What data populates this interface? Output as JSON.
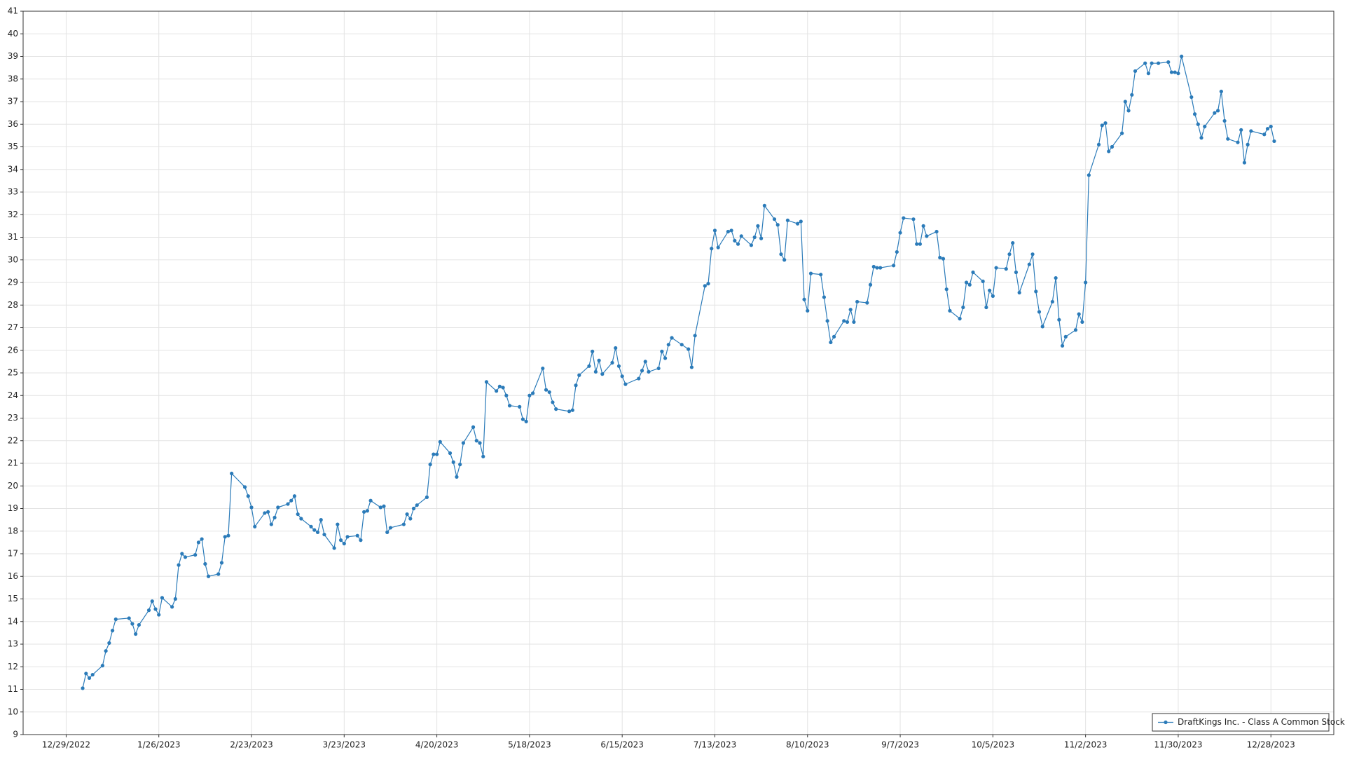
{
  "chart_data": {
    "type": "line",
    "x": [
      "1/3/2023",
      "1/4/2023",
      "1/5/2023",
      "1/6/2023",
      "1/9/2023",
      "1/10/2023",
      "1/11/2023",
      "1/12/2023",
      "1/13/2023",
      "1/17/2023",
      "1/18/2023",
      "1/19/2023",
      "1/20/2023",
      "1/23/2023",
      "1/24/2023",
      "1/25/2023",
      "1/26/2023",
      "1/27/2023",
      "1/30/2023",
      "1/31/2023",
      "2/1/2023",
      "2/2/2023",
      "2/3/2023",
      "2/6/2023",
      "2/7/2023",
      "2/8/2023",
      "2/9/2023",
      "2/10/2023",
      "2/13/2023",
      "2/14/2023",
      "2/15/2023",
      "2/16/2023",
      "2/17/2023",
      "2/21/2023",
      "2/22/2023",
      "2/23/2023",
      "2/24/2023",
      "2/27/2023",
      "2/28/2023",
      "3/1/2023",
      "3/2/2023",
      "3/3/2023",
      "3/6/2023",
      "3/7/2023",
      "3/8/2023",
      "3/9/2023",
      "3/10/2023",
      "3/13/2023",
      "3/14/2023",
      "3/15/2023",
      "3/16/2023",
      "3/17/2023",
      "3/20/2023",
      "3/21/2023",
      "3/22/2023",
      "3/23/2023",
      "3/24/2023",
      "3/27/2023",
      "3/28/2023",
      "3/29/2023",
      "3/30/2023",
      "3/31/2023",
      "4/3/2023",
      "4/4/2023",
      "4/5/2023",
      "4/6/2023",
      "4/10/2023",
      "4/11/2023",
      "4/12/2023",
      "4/13/2023",
      "4/14/2023",
      "4/17/2023",
      "4/18/2023",
      "4/19/2023",
      "4/20/2023",
      "4/21/2023",
      "4/24/2023",
      "4/25/2023",
      "4/26/2023",
      "4/27/2023",
      "4/28/2023",
      "5/1/2023",
      "5/2/2023",
      "5/3/2023",
      "5/4/2023",
      "5/5/2023",
      "5/8/2023",
      "5/9/2023",
      "5/10/2023",
      "5/11/2023",
      "5/12/2023",
      "5/15/2023",
      "5/16/2023",
      "5/17/2023",
      "5/18/2023",
      "5/19/2023",
      "5/22/2023",
      "5/23/2023",
      "5/24/2023",
      "5/25/2023",
      "5/26/2023",
      "5/30/2023",
      "5/31/2023",
      "6/1/2023",
      "6/2/2023",
      "6/5/2023",
      "6/6/2023",
      "6/7/2023",
      "6/8/2023",
      "6/9/2023",
      "6/12/2023",
      "6/13/2023",
      "6/14/2023",
      "6/15/2023",
      "6/16/2023",
      "6/20/2023",
      "6/21/2023",
      "6/22/2023",
      "6/23/2023",
      "6/26/2023",
      "6/27/2023",
      "6/28/2023",
      "6/29/2023",
      "6/30/2023",
      "7/3/2023",
      "7/5/2023",
      "7/6/2023",
      "7/7/2023",
      "7/10/2023",
      "7/11/2023",
      "7/12/2023",
      "7/13/2023",
      "7/14/2023",
      "7/17/2023",
      "7/18/2023",
      "7/19/2023",
      "7/20/2023",
      "7/21/2023",
      "7/24/2023",
      "7/25/2023",
      "7/26/2023",
      "7/27/2023",
      "7/28/2023",
      "7/31/2023",
      "8/1/2023",
      "8/2/2023",
      "8/3/2023",
      "8/4/2023",
      "8/7/2023",
      "8/8/2023",
      "8/9/2023",
      "8/10/2023",
      "8/11/2023",
      "8/14/2023",
      "8/15/2023",
      "8/16/2023",
      "8/17/2023",
      "8/18/2023",
      "8/21/2023",
      "8/22/2023",
      "8/23/2023",
      "8/24/2023",
      "8/25/2023",
      "8/28/2023",
      "8/29/2023",
      "8/30/2023",
      "8/31/2023",
      "9/1/2023",
      "9/5/2023",
      "9/6/2023",
      "9/7/2023",
      "9/8/2023",
      "9/11/2023",
      "9/12/2023",
      "9/13/2023",
      "9/14/2023",
      "9/15/2023",
      "9/18/2023",
      "9/19/2023",
      "9/20/2023",
      "9/21/2023",
      "9/22/2023",
      "9/25/2023",
      "9/26/2023",
      "9/27/2023",
      "9/28/2023",
      "9/29/2023",
      "10/2/2023",
      "10/3/2023",
      "10/4/2023",
      "10/5/2023",
      "10/6/2023",
      "10/9/2023",
      "10/10/2023",
      "10/11/2023",
      "10/12/2023",
      "10/13/2023",
      "10/16/2023",
      "10/17/2023",
      "10/18/2023",
      "10/19/2023",
      "10/20/2023",
      "10/23/2023",
      "10/24/2023",
      "10/25/2023",
      "10/26/2023",
      "10/27/2023",
      "10/30/2023",
      "10/31/2023",
      "11/1/2023",
      "11/2/2023",
      "11/3/2023",
      "11/6/2023",
      "11/7/2023",
      "11/8/2023",
      "11/9/2023",
      "11/10/2023",
      "11/13/2023",
      "11/14/2023",
      "11/15/2023",
      "11/16/2023",
      "11/17/2023",
      "11/20/2023",
      "11/21/2023",
      "11/22/2023",
      "11/24/2023",
      "11/27/2023",
      "11/28/2023",
      "11/29/2023",
      "11/30/2023",
      "12/1/2023",
      "12/4/2023",
      "12/5/2023",
      "12/6/2023",
      "12/7/2023",
      "12/8/2023",
      "12/11/2023",
      "12/12/2023",
      "12/13/2023",
      "12/14/2023",
      "12/15/2023",
      "12/18/2023",
      "12/19/2023",
      "12/20/2023",
      "12/21/2023",
      "12/22/2023",
      "12/26/2023",
      "12/27/2023",
      "12/28/2023",
      "12/29/2023"
    ],
    "series": [
      {
        "name": "DraftKings Inc. - Class A Common Stock",
        "color": "#2b7bb9",
        "values": [
          11.05,
          11.7,
          11.5,
          11.65,
          12.05,
          12.7,
          13.05,
          13.6,
          14.1,
          14.15,
          13.9,
          13.45,
          13.85,
          14.5,
          14.9,
          14.55,
          14.3,
          15.05,
          14.65,
          15.0,
          16.5,
          17.0,
          16.85,
          16.95,
          17.5,
          17.65,
          16.55,
          16.0,
          16.1,
          16.6,
          17.75,
          17.8,
          20.55,
          19.95,
          19.55,
          19.05,
          18.2,
          18.8,
          18.85,
          18.3,
          18.6,
          19.05,
          19.2,
          19.35,
          19.55,
          18.75,
          18.55,
          18.2,
          18.05,
          17.95,
          18.5,
          17.85,
          17.25,
          18.3,
          17.6,
          17.45,
          17.75,
          17.8,
          17.6,
          18.85,
          18.9,
          19.35,
          19.05,
          19.1,
          17.95,
          18.15,
          18.3,
          18.75,
          18.55,
          19.0,
          19.15,
          19.5,
          20.95,
          21.4,
          21.4,
          21.95,
          21.45,
          21.05,
          20.4,
          20.95,
          21.9,
          22.6,
          22.0,
          21.9,
          21.3,
          24.6,
          24.2,
          24.4,
          24.35,
          24.0,
          23.55,
          23.5,
          22.95,
          22.85,
          24.0,
          24.1,
          25.2,
          24.25,
          24.15,
          23.7,
          23.4,
          23.3,
          23.35,
          24.45,
          24.9,
          25.3,
          25.95,
          25.05,
          25.55,
          24.95,
          25.45,
          26.1,
          25.3,
          24.85,
          24.5,
          24.75,
          25.1,
          25.5,
          25.05,
          25.2,
          25.95,
          25.65,
          26.25,
          26.55,
          26.25,
          26.05,
          25.25,
          26.65,
          28.85,
          28.95,
          30.5,
          31.3,
          30.55,
          31.25,
          31.3,
          30.85,
          30.7,
          31.05,
          30.65,
          31.0,
          31.5,
          30.95,
          32.4,
          31.8,
          31.55,
          30.25,
          30.0,
          31.75,
          31.6,
          31.7,
          28.25,
          27.75,
          29.4,
          29.35,
          28.35,
          27.3,
          26.35,
          26.6,
          27.3,
          27.25,
          27.8,
          27.25,
          28.15,
          28.1,
          28.9,
          29.7,
          29.65,
          29.65,
          29.75,
          30.35,
          31.2,
          31.85,
          31.8,
          30.7,
          30.7,
          31.5,
          31.05,
          31.25,
          30.1,
          30.05,
          28.7,
          27.75,
          27.4,
          27.9,
          29.0,
          28.9,
          29.45,
          29.05,
          27.9,
          28.65,
          28.4,
          29.65,
          29.6,
          30.25,
          30.75,
          29.45,
          28.55,
          29.8,
          30.25,
          28.6,
          27.7,
          27.05,
          28.15,
          29.2,
          27.35,
          26.2,
          26.6,
          26.9,
          27.6,
          27.25,
          29.0,
          33.75,
          35.1,
          35.95,
          36.05,
          34.8,
          35.0,
          35.6,
          37.0,
          36.6,
          37.3,
          38.35,
          38.7,
          38.25,
          38.7,
          38.7,
          38.75,
          38.3,
          38.3,
          38.25,
          39.0,
          37.2,
          36.45,
          36.0,
          35.4,
          35.9,
          36.5,
          36.6,
          37.45,
          36.15,
          35.35,
          35.2,
          35.75,
          34.3,
          35.1,
          35.7,
          35.55,
          35.8,
          35.9,
          35.25
        ]
      }
    ],
    "xlim": [
      "12/16/2022",
      "1/16/2024"
    ],
    "xticks": [
      "12/29/2022",
      "1/26/2023",
      "2/23/2023",
      "3/23/2023",
      "4/20/2023",
      "5/18/2023",
      "6/15/2023",
      "7/13/2023",
      "8/10/2023",
      "9/7/2023",
      "10/5/2023",
      "11/2/2023",
      "11/30/2023",
      "12/28/2023"
    ],
    "ylim": [
      9,
      41
    ],
    "yticks": [
      9,
      10,
      11,
      12,
      13,
      14,
      15,
      16,
      17,
      18,
      19,
      20,
      21,
      22,
      23,
      24,
      25,
      26,
      27,
      28,
      29,
      30,
      31,
      32,
      33,
      34,
      35,
      36,
      37,
      38,
      39,
      40,
      41
    ],
    "grid": true,
    "legend": "bottom-right"
  }
}
